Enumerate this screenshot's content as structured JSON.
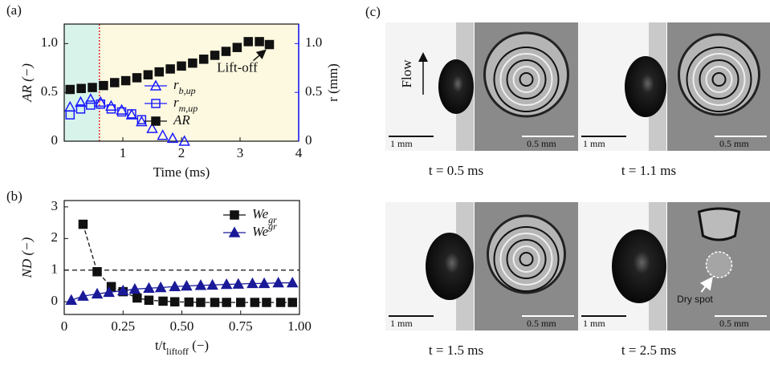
{
  "chart_data": [
    {
      "type": "scatter",
      "panel": "(a)",
      "xlabel": "Time (ms)",
      "ylabel": "AR (−)",
      "y2label": "r (mm)",
      "y2color": "#1a1aff",
      "xlim": [
        0,
        4
      ],
      "ylim": [
        0,
        1.2
      ],
      "y2lim": [
        0,
        1.2
      ],
      "xticks": [
        1,
        2,
        3,
        4
      ],
      "yticks": [
        0,
        0.5,
        {
          "value": 1,
          "label": "1.0"
        }
      ],
      "y2ticks": [
        0,
        0.5,
        {
          "value": 1,
          "label": "1.0"
        }
      ],
      "regions": [
        {
          "from": 0,
          "to": 0.6,
          "color": "#d8f3ea"
        },
        {
          "from": 0.6,
          "to": 4,
          "color": "#fdf9e0"
        }
      ],
      "split_line_color": "#e0262b",
      "annotation": "Lift-off",
      "legend": "center",
      "series": [
        {
          "name": "r_{b,up}",
          "color": "#1a1aff",
          "marker": "triangle-open",
          "axis": "y2",
          "x": [
            0.1,
            0.28,
            0.45,
            0.62,
            0.8,
            0.98,
            1.15,
            1.32,
            1.5,
            1.68,
            1.85,
            2.05
          ],
          "values": [
            0.35,
            0.4,
            0.43,
            0.4,
            0.36,
            0.32,
            0.27,
            0.2,
            0.13,
            0.06,
            0.03,
            0.0
          ]
        },
        {
          "name": "r_{m,up}",
          "color": "#1a1aff",
          "marker": "square-open",
          "axis": "y2",
          "x": [
            0.1,
            0.28,
            0.45,
            0.62,
            0.8,
            0.98,
            1.15,
            1.32
          ],
          "values": [
            0.27,
            0.33,
            0.37,
            0.38,
            0.33,
            0.3,
            0.28,
            0.22
          ]
        },
        {
          "name": "AR",
          "color": "#111111",
          "marker": "square",
          "x": [
            0.1,
            0.29,
            0.48,
            0.67,
            0.86,
            1.05,
            1.24,
            1.43,
            1.62,
            1.81,
            2.0,
            2.19,
            2.38,
            2.57,
            2.76,
            2.95,
            3.14,
            3.33,
            3.5
          ],
          "values": [
            0.53,
            0.54,
            0.55,
            0.57,
            0.6,
            0.62,
            0.65,
            0.68,
            0.71,
            0.74,
            0.77,
            0.8,
            0.84,
            0.88,
            0.92,
            0.96,
            1.02,
            1.02,
            0.99
          ]
        }
      ]
    },
    {
      "type": "line",
      "panel": "(b)",
      "xlabel": "t/t_{liftoff} (−)",
      "ylabel": "ND (−)",
      "xlim": [
        0,
        1
      ],
      "ylim": [
        -0.4,
        3.2
      ],
      "xticks": [
        0,
        0.25,
        {
          "value": 0.5,
          "label": "0.50"
        },
        {
          "value": 0.75,
          "label": "0.75"
        },
        {
          "value": 1,
          "label": "1.00"
        }
      ],
      "yticks": [
        0,
        1,
        2,
        3
      ],
      "hline": 1,
      "legend": "upper right",
      "series": [
        {
          "name": "We_{gr}",
          "color": "#111111",
          "marker": "square",
          "dash": true,
          "x": [
            0.08,
            0.14,
            0.2,
            0.25,
            0.31,
            0.36,
            0.42,
            0.47,
            0.53,
            0.58,
            0.64,
            0.69,
            0.75,
            0.81,
            0.86,
            0.92,
            0.97
          ],
          "values": [
            2.45,
            0.95,
            0.48,
            0.32,
            0.12,
            0.05,
            0.02,
            0.0,
            -0.01,
            -0.02,
            -0.02,
            -0.02,
            -0.02,
            -0.02,
            -0.02,
            -0.02,
            -0.02
          ]
        },
        {
          "name": "We^{gr}",
          "color": "#1a1a99",
          "marker": "triangle",
          "x": [
            0.03,
            0.08,
            0.14,
            0.19,
            0.25,
            0.3,
            0.36,
            0.41,
            0.47,
            0.52,
            0.58,
            0.63,
            0.69,
            0.74,
            0.8,
            0.85,
            0.91,
            0.97
          ],
          "values": [
            0.05,
            0.18,
            0.25,
            0.3,
            0.35,
            0.4,
            0.43,
            0.45,
            0.48,
            0.5,
            0.52,
            0.53,
            0.55,
            0.56,
            0.58,
            0.58,
            0.6,
            0.6
          ]
        }
      ]
    }
  ],
  "panel_c": {
    "label": "(c)",
    "flow_label": "Flow",
    "dry_spot": "Dry spot",
    "frames": [
      {
        "time": "t = 0.5 ms",
        "side_scale": "1 mm",
        "top_scale": "0.5 mm"
      },
      {
        "time": "t = 1.1 ms",
        "side_scale": "1 mm",
        "top_scale": "0.5 mm"
      },
      {
        "time": "t = 1.5 ms",
        "side_scale": "1 mm",
        "top_scale": "0.5 mm"
      },
      {
        "time": "t = 2.5 ms",
        "side_scale": "1 mm",
        "top_scale": "0.5 mm"
      }
    ]
  }
}
